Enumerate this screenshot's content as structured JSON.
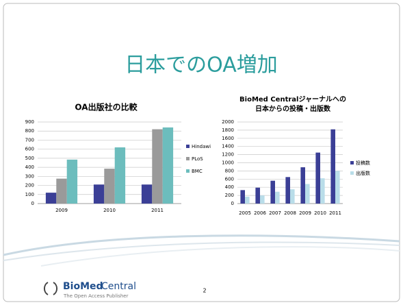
{
  "slide": {
    "title": "日本でのOA増加",
    "page_number": "2",
    "logo_name_bold": "BioMed",
    "logo_name": "Central",
    "logo_tagline": "The Open Access Publisher"
  },
  "chart_data": [
    {
      "type": "bar",
      "title": "OA出版社の比較",
      "categories": [
        "2009",
        "2010",
        "2011"
      ],
      "series": [
        {
          "name": "Hindawi",
          "color": "#3b3f96",
          "values": [
            120,
            210,
            210
          ]
        },
        {
          "name": "PLoS",
          "color": "#9a9a9a",
          "values": [
            275,
            385,
            820
          ]
        },
        {
          "name": "BMC",
          "color": "#6cbdbd",
          "values": [
            485,
            620,
            840
          ]
        }
      ],
      "ylim": [
        0,
        900
      ],
      "yticks": [
        0,
        100,
        200,
        300,
        400,
        500,
        600,
        700,
        800,
        900
      ],
      "grid": true,
      "legend": "right"
    },
    {
      "type": "bar",
      "title": [
        "BioMed Centralジャーナルへの",
        "日本からの投稿・出版数"
      ],
      "categories": [
        "2005",
        "2006",
        "2007",
        "2008",
        "2009",
        "2010",
        "2011"
      ],
      "series": [
        {
          "name": "投稿数",
          "color": "#3b3f96",
          "values": [
            330,
            390,
            560,
            650,
            890,
            1250,
            1820
          ]
        },
        {
          "name": "出版数",
          "color": "#b9dde9",
          "values": [
            170,
            200,
            290,
            350,
            480,
            620,
            800
          ]
        }
      ],
      "ylim": [
        0,
        2000
      ],
      "yticks": [
        0,
        200,
        400,
        600,
        800,
        1000,
        1200,
        1400,
        1600,
        1800,
        2000
      ],
      "grid": true,
      "legend": "right"
    }
  ]
}
